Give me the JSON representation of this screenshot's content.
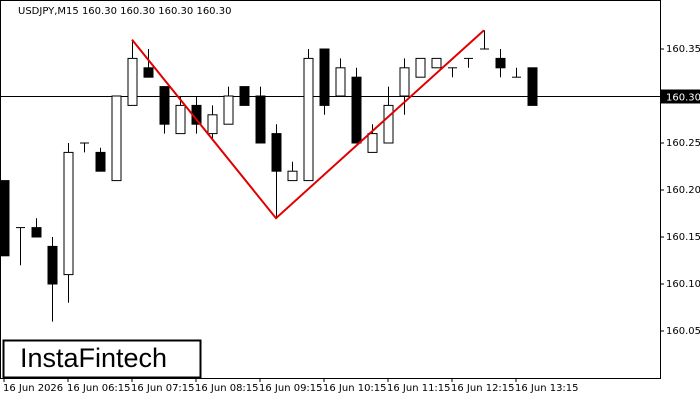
{
  "chart_data": {
    "type": "candlestick",
    "title": "USDJPY,M15  160.30 160.30 160.30 160.30",
    "categories": [
      "16 Jun 2026",
      null,
      null,
      null,
      "16 Jun 06:15",
      null,
      null,
      null,
      "16 Jun 07:15",
      null,
      null,
      null,
      "16 Jun 08:15",
      null,
      null,
      null,
      "16 Jun 09:15",
      null,
      null,
      null,
      "16 Jun 10:15",
      null,
      null,
      null,
      "16 Jun 11:15",
      null,
      null,
      null,
      "16 Jun 12:15",
      null,
      null,
      null,
      "16 Jun 13:15",
      null
    ],
    "open": [
      160.21,
      160.16,
      160.16,
      160.14,
      160.11,
      160.25,
      160.24,
      160.21,
      160.29,
      160.33,
      160.31,
      160.26,
      160.29,
      160.26,
      160.27,
      160.31,
      160.3,
      160.26,
      160.21,
      160.21,
      160.35,
      160.3,
      160.32,
      160.24,
      160.25,
      160.3,
      160.32,
      160.33,
      160.33,
      160.34,
      160.35,
      160.34,
      160.32,
      160.33
    ],
    "high": [
      160.21,
      160.16,
      160.17,
      160.15,
      160.25,
      160.25,
      160.245,
      160.3,
      160.36,
      160.35,
      160.31,
      160.3,
      160.3,
      160.29,
      160.31,
      160.31,
      160.31,
      160.27,
      160.23,
      160.35,
      160.35,
      160.34,
      160.33,
      160.27,
      160.31,
      160.34,
      160.34,
      160.34,
      160.33,
      160.34,
      160.37,
      160.35,
      160.33,
      160.33
    ],
    "low": [
      160.13,
      160.12,
      160.15,
      160.06,
      160.08,
      160.24,
      160.22,
      160.21,
      160.29,
      160.32,
      160.26,
      160.26,
      160.26,
      160.255,
      160.27,
      160.29,
      160.25,
      160.17,
      160.21,
      160.21,
      160.28,
      160.3,
      160.25,
      160.24,
      160.25,
      160.28,
      160.32,
      160.33,
      160.32,
      160.33,
      160.35,
      160.32,
      160.32,
      160.29
    ],
    "close": [
      160.13,
      160.16,
      160.15,
      160.1,
      160.24,
      160.25,
      160.22,
      160.3,
      160.34,
      160.32,
      160.27,
      160.29,
      160.27,
      160.28,
      160.3,
      160.29,
      160.25,
      160.22,
      160.22,
      160.34,
      160.29,
      160.33,
      160.25,
      160.26,
      160.29,
      160.33,
      160.34,
      160.34,
      160.33,
      160.34,
      160.35,
      160.33,
      160.32,
      160.29
    ],
    "up_color": "#ffffff",
    "down_color": "#000000",
    "ylim": [
      160.0,
      160.4
    ],
    "yticks": [
      160.05,
      {
        "value": 160.1,
        "label": "160.10"
      },
      160.15,
      {
        "value": 160.2,
        "label": "160.20"
      },
      160.25,
      {
        "value": 160.3,
        "label": "160.30"
      },
      160.35
    ],
    "current_price": {
      "value": 160.3,
      "label": "160.30"
    },
    "pattern": {
      "color": "#e00000",
      "points": [
        {
          "x": 8,
          "y": 160.36
        },
        {
          "x": 17,
          "y": 160.17
        },
        {
          "x": 30,
          "y": 160.37
        }
      ]
    },
    "logo": "InstaFintech"
  }
}
